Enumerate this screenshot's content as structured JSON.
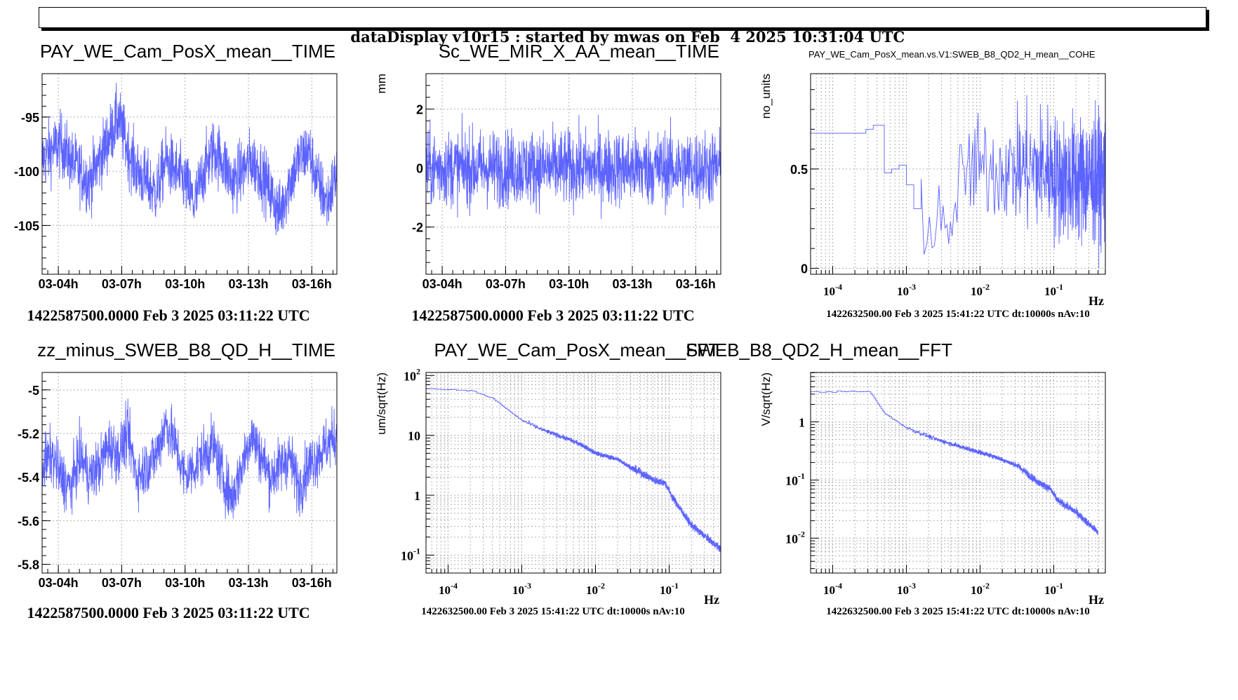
{
  "header": {
    "title": "dataDisplay v10r15 : started by mwas on Feb  4 2025 10:31:04 UTC"
  },
  "colors": {
    "trace": "#5c63ff",
    "grid": "#b0b0b0",
    "frame": "#000000"
  },
  "chart_data": [
    {
      "type": "line",
      "title": "PAY_WE_Cam_PosX_mean__TIME",
      "ylabel": "",
      "xlabel": "",
      "x_ticks": [
        "03-04h",
        "03-07h",
        "03-10h",
        "03-13h",
        "03-16h"
      ],
      "ylim": [
        -109.5,
        -91
      ],
      "y_ticks": [
        {
          "v": -95,
          "label": "-95"
        },
        {
          "v": -100,
          "label": "-100"
        },
        {
          "v": -105,
          "label": "-105"
        }
      ],
      "trend": [
        -99,
        -98,
        -97.5,
        -99,
        -100,
        -101,
        -99,
        -97,
        -95,
        -98,
        -100,
        -101,
        -102,
        -99,
        -100,
        -101,
        -103,
        -100,
        -98,
        -99,
        -101,
        -100,
        -99,
        -100,
        -102,
        -104,
        -101,
        -99,
        -98,
        -101,
        -103,
        -100
      ],
      "noise_amp": 5,
      "footer": "1422587500.0000 Feb 3 2025 03:11:22 UTC"
    },
    {
      "type": "line",
      "title": "Sc_WE_MIR_X_AA_mean__TIME",
      "ylabel": "mm",
      "xlabel": "",
      "x_ticks": [
        "03-04h",
        "03-07h",
        "03-10h",
        "03-13h",
        "03-16h"
      ],
      "ylim": [
        -3.6,
        3.2
      ],
      "y_ticks": [
        {
          "v": 2,
          "label": "2"
        },
        {
          "v": 0,
          "label": "0"
        },
        {
          "v": -2,
          "label": "-2"
        }
      ],
      "trend": [
        0,
        0,
        0,
        0,
        0,
        0,
        0,
        0,
        0,
        0,
        0,
        0,
        0,
        0,
        0,
        0,
        0,
        0,
        0,
        0,
        0,
        0,
        0,
        0,
        0,
        0,
        0,
        0,
        0,
        0,
        0,
        0
      ],
      "noise_amp": 2.2,
      "footer": "1422587500.0000 Feb 3 2025 03:11:22 UTC"
    },
    {
      "type": "line",
      "title": "PAY_WE_Cam_PosX_mean.vs.V1:SWEB_B8_QD2_H_mean__COHE",
      "ylabel": "no_units",
      "xlabel": "Hz",
      "log_x": true,
      "xlim_log": [
        -4.3,
        -0.3
      ],
      "x_ticks": [
        {
          "exp": -4,
          "label": "10"
        },
        {
          "exp": -3,
          "label": "10"
        },
        {
          "exp": -2,
          "label": "10"
        },
        {
          "exp": -1,
          "label": "10"
        }
      ],
      "x_tick_exponents": [
        "-4",
        "-3",
        "-2",
        "-1"
      ],
      "ylim": [
        -0.03,
        0.98
      ],
      "y_ticks": [
        {
          "v": 0.5,
          "label": "0.5"
        },
        {
          "v": 0,
          "label": "0"
        }
      ],
      "kind": "coherence",
      "footer": "1422632500.00 Feb 3 2025 15:41:22 UTC dt:10000s nAv:10"
    },
    {
      "type": "line",
      "title": "zz_minus_SWEB_B8_QD_H__TIME",
      "ylabel": "",
      "xlabel": "",
      "x_ticks": [
        "03-04h",
        "03-07h",
        "03-10h",
        "03-13h",
        "03-16h"
      ],
      "ylim": [
        -5.84,
        -4.92
      ],
      "y_ticks": [
        {
          "v": -5,
          "label": "-5"
        },
        {
          "v": -5.2,
          "label": "-5.2"
        },
        {
          "v": -5.4,
          "label": "-5.4"
        },
        {
          "v": -5.6,
          "label": "-5.6"
        },
        {
          "v": -5.8,
          "label": "-5.8"
        }
      ],
      "trend": [
        -5.35,
        -5.3,
        -5.4,
        -5.45,
        -5.3,
        -5.4,
        -5.35,
        -5.25,
        -5.3,
        -5.2,
        -5.4,
        -5.35,
        -5.3,
        -5.15,
        -5.25,
        -5.4,
        -5.35,
        -5.3,
        -5.25,
        -5.4,
        -5.5,
        -5.35,
        -5.2,
        -5.3,
        -5.4,
        -5.35,
        -5.3,
        -5.45,
        -5.35,
        -5.3,
        -5.25,
        -5.2
      ],
      "noise_amp": 0.22,
      "footer": "1422587500.0000 Feb 3 2025 03:11:22 UTC"
    },
    {
      "type": "line",
      "title": "PAY_WE_Cam_PosX_mean__FFT",
      "ylabel": "um/sqrt(Hz)",
      "xlabel": "Hz",
      "log_x": true,
      "log_y": true,
      "xlim_log": [
        -4.3,
        -0.3
      ],
      "ylim_log": [
        -1.3,
        2.05
      ],
      "x_ticks": [
        {
          "exp": -4,
          "label": "10"
        },
        {
          "exp": -3,
          "label": "10"
        },
        {
          "exp": -2,
          "label": "10"
        },
        {
          "exp": -1,
          "label": "10"
        }
      ],
      "x_tick_exponents": [
        "-4",
        "-3",
        "-2",
        "-1"
      ],
      "y_ticks": [
        {
          "exp": 2,
          "label": "10",
          "sup": "2"
        },
        {
          "exp": 1,
          "label": "10",
          "sup": ""
        },
        {
          "exp": 0,
          "label": "1",
          "sup": ""
        },
        {
          "exp": -1,
          "label": "10",
          "sup": "-1"
        }
      ],
      "spectrum": [
        [
          -4.3,
          1.78
        ],
        [
          -3.7,
          1.75
        ],
        [
          -3.4,
          1.62
        ],
        [
          -3.0,
          1.25
        ],
        [
          -2.7,
          1.08
        ],
        [
          -2.4,
          0.95
        ],
        [
          -2.2,
          0.85
        ],
        [
          -2.0,
          0.7
        ],
        [
          -1.7,
          0.6
        ],
        [
          -1.5,
          0.45
        ],
        [
          -1.2,
          0.25
        ],
        [
          -1.05,
          0.2
        ],
        [
          -0.95,
          -0.05
        ],
        [
          -0.7,
          -0.5
        ],
        [
          -0.3,
          -0.9
        ]
      ],
      "footer": "1422632500.00 Feb 3 2025 15:41:22 UTC dt:10000s nAv:10"
    },
    {
      "type": "line",
      "title": "SWEB_B8_QD2_H_mean__FFT",
      "ylabel": "V/sqrt(Hz)",
      "xlabel": "Hz",
      "log_x": true,
      "log_y": true,
      "xlim_log": [
        -4.3,
        -0.3
      ],
      "ylim_log": [
        -2.6,
        0.85
      ],
      "x_ticks": [
        {
          "exp": -4,
          "label": "10"
        },
        {
          "exp": -3,
          "label": "10"
        },
        {
          "exp": -2,
          "label": "10"
        },
        {
          "exp": -1,
          "label": "10"
        }
      ],
      "x_tick_exponents": [
        "-4",
        "-3",
        "-2",
        "-1"
      ],
      "y_ticks": [
        {
          "exp": 0,
          "label": "1",
          "sup": ""
        },
        {
          "exp": -1,
          "label": "10",
          "sup": "-1"
        },
        {
          "exp": -2,
          "label": "10",
          "sup": "-2"
        }
      ],
      "spectrum": [
        [
          -4.3,
          0.52
        ],
        [
          -3.5,
          0.52
        ],
        [
          -3.3,
          0.15
        ],
        [
          -3.0,
          -0.1
        ],
        [
          -2.6,
          -0.3
        ],
        [
          -2.2,
          -0.45
        ],
        [
          -1.8,
          -0.6
        ],
        [
          -1.5,
          -0.75
        ],
        [
          -1.2,
          -1.05
        ],
        [
          -1.05,
          -1.15
        ],
        [
          -0.95,
          -1.35
        ],
        [
          -0.7,
          -1.55
        ],
        [
          -0.4,
          -1.9
        ]
      ],
      "footer": "1422632500.00 Feb 3 2025 15:41:22 UTC dt:10000s nAv:10"
    }
  ]
}
